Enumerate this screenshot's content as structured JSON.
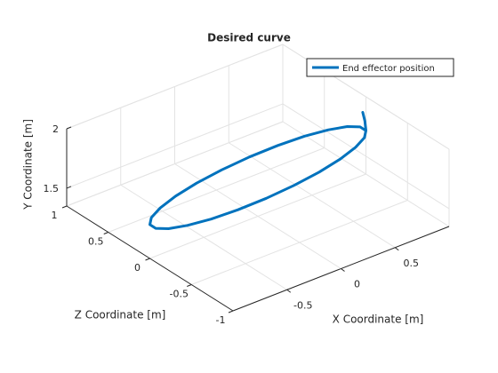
{
  "chart_data": {
    "type": "line3d",
    "title": "Desired curve",
    "xlabel": "X Coordinate [m]",
    "ylabel": "Y Coordinate [m]",
    "zlabel": "Z Coordinate [m]",
    "xlim": [
      -1,
      1
    ],
    "zlim": [
      -1,
      1
    ],
    "ylim": [
      1.35,
      2
    ],
    "xticks": [
      -0.5,
      0,
      0.5
    ],
    "zticks": [
      -1,
      -0.5,
      0,
      0.5,
      1
    ],
    "yticks": [
      1.5,
      2
    ],
    "grid": true,
    "legend": "northeast",
    "series": [
      {
        "name": "End effector position",
        "color": "#0072bd",
        "x": [
          0.97,
          0.99,
          1,
          0.966,
          0.866,
          0.707,
          0.5,
          0.259,
          0,
          -0.259,
          -0.5,
          -0.707,
          -0.866,
          -0.966,
          -1,
          -0.966,
          -0.866,
          -0.707,
          -0.5,
          -0.259,
          0,
          0.259,
          0.5,
          0.707,
          0.866,
          0.966,
          1,
          0.966
        ],
        "z": [
          0,
          0,
          0,
          -0.026,
          -0.05,
          -0.071,
          -0.087,
          -0.097,
          -0.1,
          -0.097,
          -0.087,
          -0.071,
          -0.05,
          -0.026,
          0,
          0.026,
          0.05,
          0.071,
          0.087,
          0.097,
          0.1,
          0.097,
          0.087,
          0.071,
          0.05,
          0.026,
          0,
          -0.026
        ],
        "y": [
          1.88,
          1.8,
          1.715,
          1.68,
          1.645,
          1.611,
          1.582,
          1.56,
          1.545,
          1.539,
          1.542,
          1.555,
          1.575,
          1.603,
          1.635,
          1.67,
          1.705,
          1.739,
          1.768,
          1.79,
          1.805,
          1.811,
          1.808,
          1.795,
          1.775,
          1.747,
          1.715,
          1.68
        ]
      }
    ]
  }
}
